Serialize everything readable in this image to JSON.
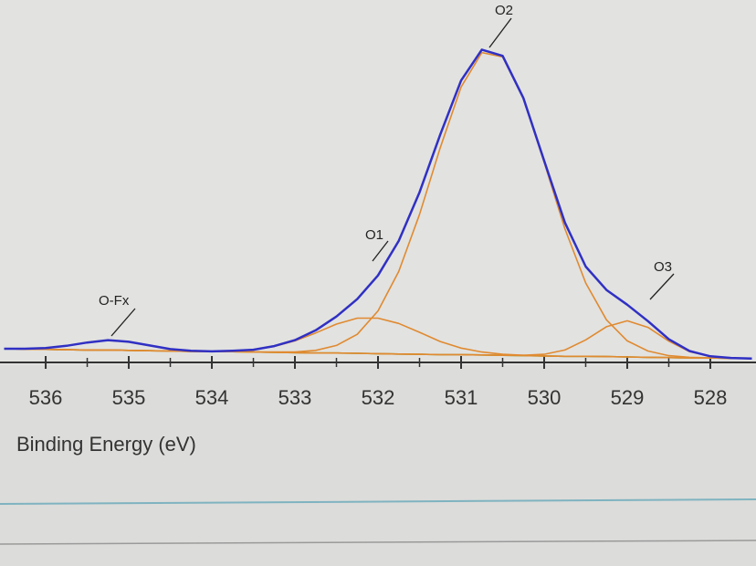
{
  "chart_data": {
    "type": "line",
    "x_label": "Binding Energy (eV)",
    "x": [
      536.5,
      536.25,
      536,
      535.75,
      535.5,
      535.25,
      535,
      534.75,
      534.5,
      534.25,
      534,
      533.75,
      533.5,
      533.25,
      533,
      532.75,
      532.5,
      532.25,
      532,
      531.75,
      531.5,
      531.25,
      531,
      530.75,
      530.5,
      530.25,
      530,
      529.75,
      529.5,
      529.25,
      529,
      528.75,
      528.5,
      528.25,
      528,
      527.75,
      527.5
    ],
    "series": [
      {
        "color": "#44bb44",
        "values": [
          5.0,
          4.9,
          4.8,
          4.7,
          4.6,
          4.6,
          4.5,
          4.4,
          4.3,
          4.2,
          4.1,
          4.1,
          4.0,
          3.9,
          3.8,
          3.7,
          3.7,
          3.6,
          3.5,
          3.4,
          3.3,
          3.2,
          3.2,
          3.1,
          3.0,
          2.9,
          2.8,
          2.7,
          2.7,
          2.6,
          2.5,
          2.4,
          2.3,
          2.2,
          2.2,
          2.1,
          2.0
        ]
      },
      {
        "name": "O-Fx",
        "color": "#e08a30",
        "values": [
          5.0,
          5.0,
          5.2,
          5.9,
          6.9,
          7.6,
          7.1,
          6.0,
          4.9,
          4.4,
          4.1,
          4.1,
          4.0,
          3.9,
          3.8,
          3.7,
          3.7,
          3.6,
          3.5,
          3.4,
          3.3,
          3.2,
          3.2,
          3.1,
          3.0,
          2.9,
          2.8,
          2.7,
          2.7,
          2.6,
          2.5,
          2.4,
          2.3,
          2.2,
          2.2,
          2.1,
          2.0
        ]
      },
      {
        "name": "O1",
        "color": "#e08a30",
        "values": [
          5.0,
          4.9,
          4.8,
          4.7,
          4.6,
          4.6,
          4.5,
          4.4,
          4.3,
          4.2,
          4.2,
          4.4,
          4.7,
          5.7,
          7.4,
          9.8,
          12.5,
          14.3,
          14.3,
          12.7,
          10.0,
          7.2,
          5.2,
          4.0,
          3.3,
          3.0,
          2.8,
          2.7,
          2.7,
          2.6,
          2.5,
          2.4,
          2.3,
          2.2,
          2.2,
          2.1,
          2.0
        ]
      },
      {
        "name": "O2",
        "color": "#e08a30",
        "values": [
          5.0,
          4.9,
          4.8,
          4.7,
          4.6,
          4.6,
          4.5,
          4.4,
          4.3,
          4.2,
          4.1,
          4.1,
          4.0,
          4.0,
          4.0,
          4.5,
          6.0,
          9.4,
          16.5,
          28.5,
          45.9,
          66.2,
          84.6,
          95.1,
          93.8,
          81.1,
          61.7,
          41.5,
          25.0,
          13.8,
          7.4,
          4.3,
          2.9,
          2.4,
          2.2,
          2.1,
          2.0
        ]
      },
      {
        "name": "O3",
        "color": "#e08a30",
        "values": [
          5.0,
          4.9,
          4.8,
          4.7,
          4.6,
          4.6,
          4.5,
          4.4,
          4.3,
          4.2,
          4.1,
          4.1,
          4.0,
          3.9,
          3.8,
          3.7,
          3.7,
          3.6,
          3.5,
          3.4,
          3.3,
          3.2,
          3.2,
          3.1,
          3.0,
          3.0,
          3.3,
          4.6,
          7.7,
          11.7,
          13.5,
          11.5,
          7.3,
          4.1,
          2.7,
          2.2,
          2.0
        ]
      },
      {
        "color": "#3030c4",
        "values": [
          5.0,
          5.0,
          5.2,
          5.9,
          6.9,
          7.6,
          7.1,
          6.0,
          4.9,
          4.4,
          4.2,
          4.4,
          4.7,
          5.8,
          7.6,
          10.6,
          14.8,
          20.1,
          27.3,
          37.8,
          52.6,
          70.2,
          86.6,
          96.0,
          94.1,
          81.3,
          62.2,
          43.4,
          30.0,
          22.9,
          18.4,
          13.4,
          7.9,
          4.3,
          2.7,
          2.2,
          2.0
        ]
      }
    ],
    "xlim": [
      536.55,
      527.45
    ],
    "ylim": [
      0,
      100
    ],
    "xticks": [
      536,
      535,
      534,
      533,
      532,
      531,
      530,
      529,
      528
    ],
    "minor_xticks": [
      535.5,
      534.5,
      533.5,
      532.5,
      531.5,
      530.5,
      529.5,
      528.5
    ]
  }
}
